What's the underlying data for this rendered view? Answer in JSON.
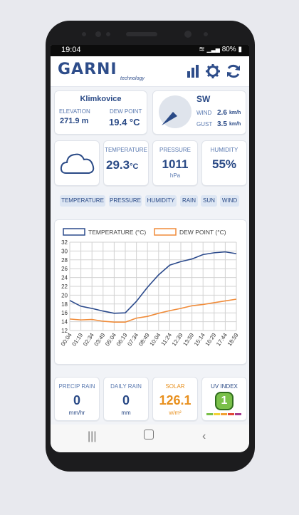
{
  "status": {
    "time": "19:04",
    "battery": "80%"
  },
  "app": {
    "logo": "GARNI",
    "logo_sub": "technology"
  },
  "location": {
    "name": "Klimkovice",
    "elevation_label": "ELEVATION",
    "elevation": "271.9 m",
    "dewpoint_label": "DEW POINT",
    "dewpoint": "19.4 °C"
  },
  "wind": {
    "direction": "SW",
    "wind_label": "WIND",
    "wind_value": "2.6",
    "wind_unit": "km/h",
    "gust_label": "GUST",
    "gust_value": "3.5",
    "gust_unit": "km/h"
  },
  "current": {
    "temp_label": "TEMPERATURE",
    "temp_value": "29.3",
    "temp_unit": "°C",
    "pressure_label": "PRESSURE",
    "pressure_value": "1011",
    "pressure_unit": "hPa",
    "humidity_label": "HUMIDITY",
    "humidity_value": "55%"
  },
  "tabs": [
    "TEMPERATURE",
    "PRESSURE",
    "HUMIDITY",
    "RAIN",
    "SUN",
    "WIND"
  ],
  "chart_data": {
    "type": "line",
    "x": [
      "00:04",
      "01:19",
      "02:34",
      "03:49",
      "05:04",
      "06:19",
      "07:34",
      "08:49",
      "10:04",
      "11:24",
      "12:39",
      "13:59",
      "15:14",
      "16:29",
      "17:44",
      "18:59"
    ],
    "ylim": [
      12,
      32
    ],
    "yticks": [
      12,
      14,
      16,
      18,
      20,
      22,
      24,
      26,
      28,
      30,
      32
    ],
    "series": [
      {
        "name": "TEMPERATURE (°C)",
        "color": "#2b4a8c",
        "values": [
          18.8,
          17.5,
          17.0,
          16.4,
          15.9,
          16.0,
          18.6,
          21.8,
          24.6,
          26.8,
          27.6,
          28.2,
          29.2,
          29.6,
          29.8,
          29.4
        ]
      },
      {
        "name": "DEW POINT (°C)",
        "color": "#f08c3a",
        "values": [
          14.6,
          14.4,
          14.5,
          14.1,
          13.9,
          13.9,
          14.8,
          15.2,
          15.9,
          16.5,
          17.0,
          17.6,
          17.9,
          18.3,
          18.7,
          19.1
        ]
      }
    ]
  },
  "bottom": {
    "precip_label": "PRECIP RAIN",
    "precip_value": "0",
    "precip_unit": "mm/hr",
    "daily_label": "DAILY RAIN",
    "daily_value": "0",
    "daily_unit": "mm",
    "solar_label": "SOLAR",
    "solar_value": "126.1",
    "solar_unit": "w/m²",
    "uv_label": "UV INDEX",
    "uv_value": "1"
  },
  "colors": {
    "accent": "#2a4a86",
    "label": "#5a79b0",
    "solar": "#e8901e",
    "uv": "#7ac04a"
  }
}
